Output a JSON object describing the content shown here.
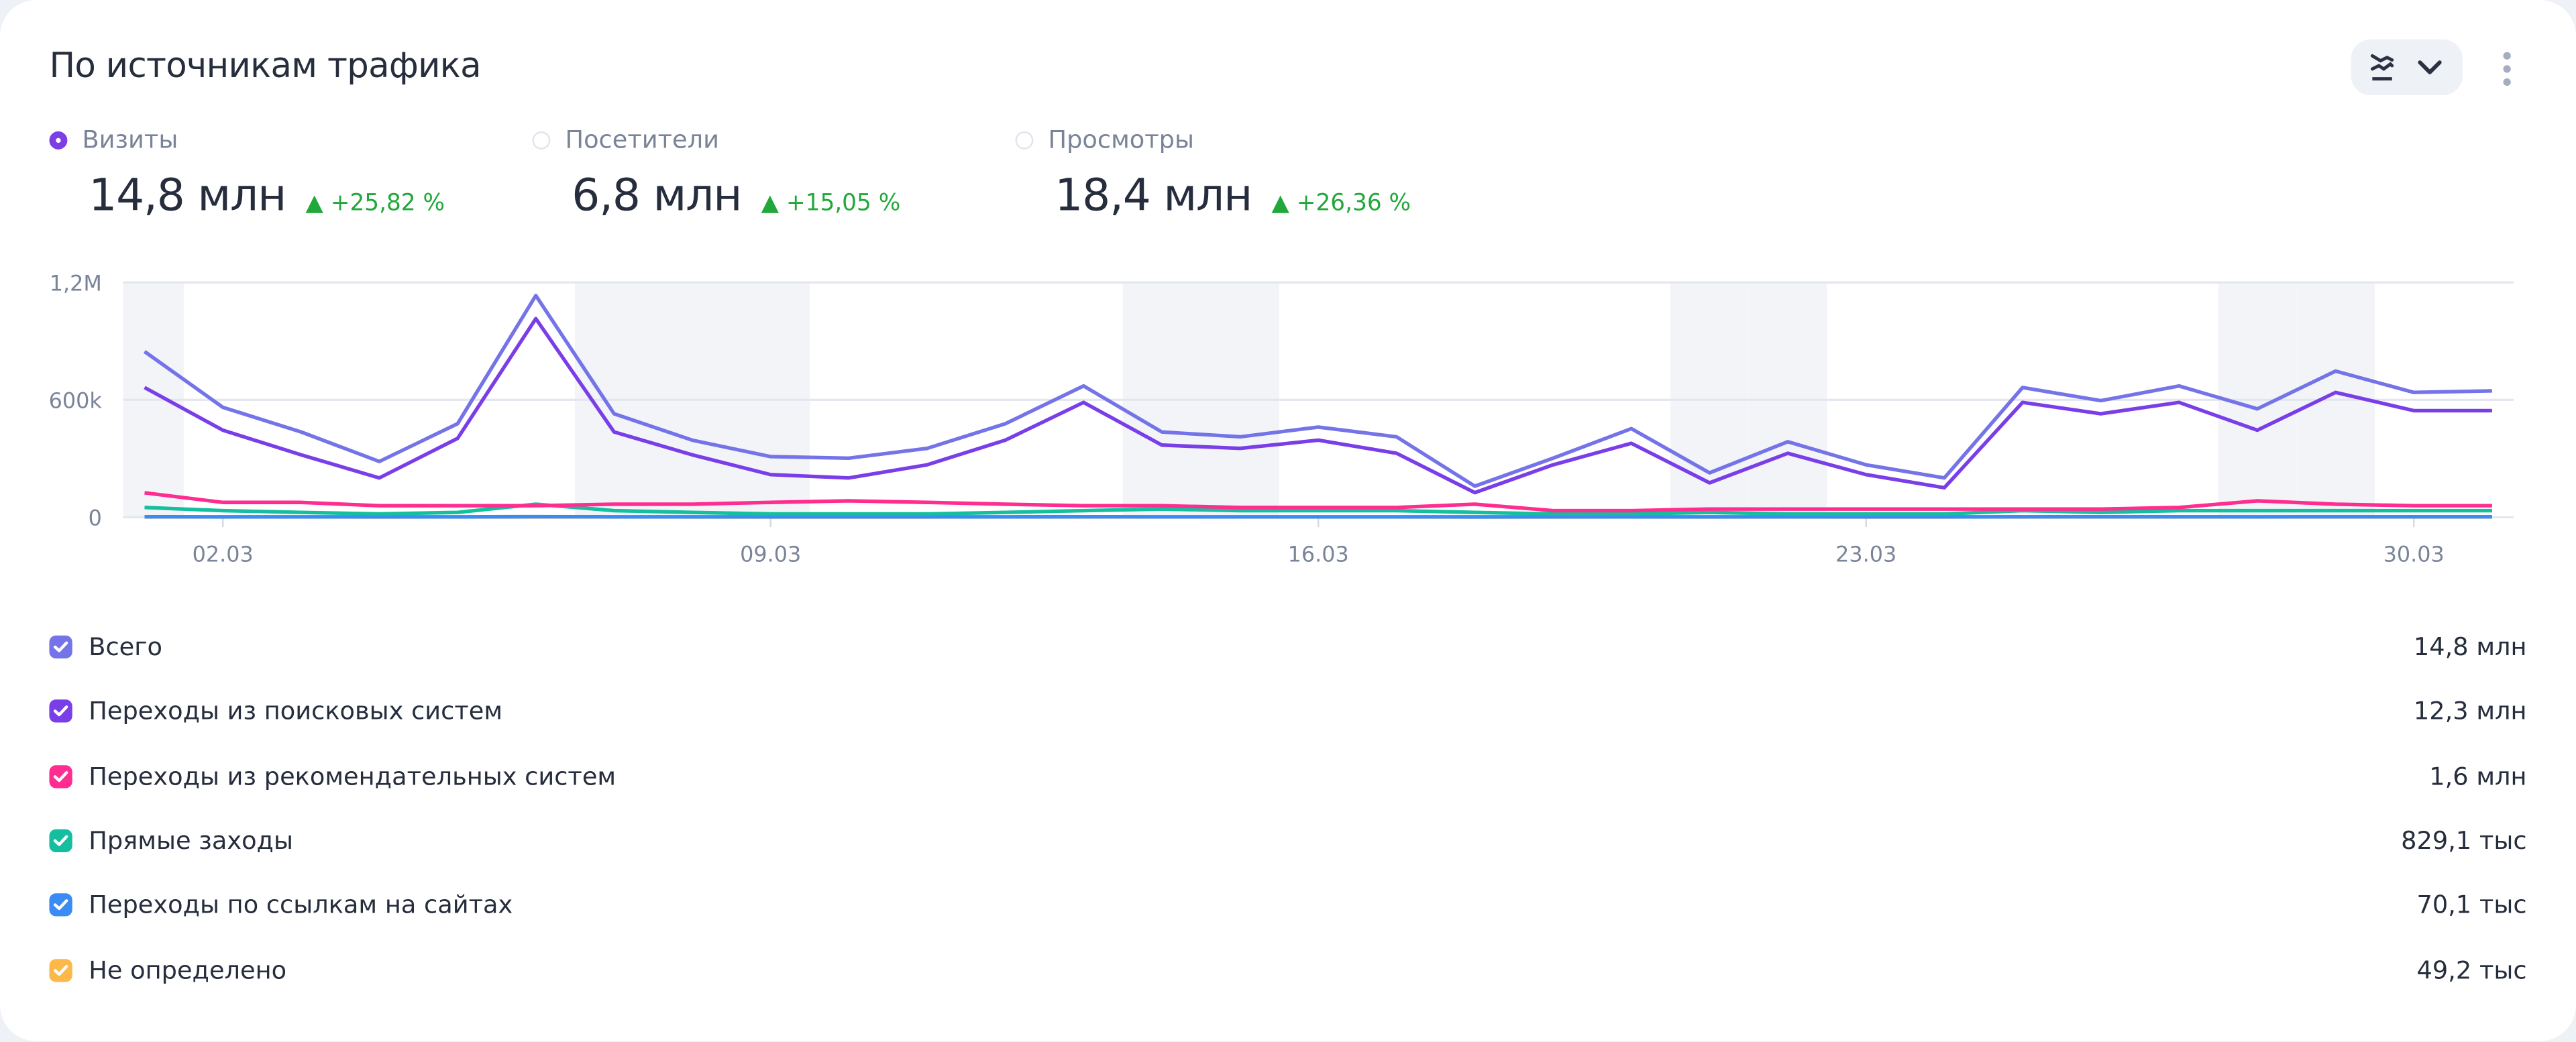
{
  "header": {
    "title": "По источникам трафика",
    "view_icon": "chart-lines-icon",
    "more_icon": "more-vertical-icon"
  },
  "metrics": [
    {
      "label": "Визиты",
      "value": "14,8 млн",
      "change": "▲ +25,82 %",
      "selected": true
    },
    {
      "label": "Посетители",
      "value": "6,8 млн",
      "change": "▲ +15,05 %",
      "selected": false
    },
    {
      "label": "Просмотры",
      "value": "18,4 млн",
      "change": "▲ +26,36 %",
      "selected": false
    }
  ],
  "legend": [
    {
      "label": "Всего",
      "value": "14,8 млн",
      "color": "#7474e8"
    },
    {
      "label": "Переходы из поисковых систем",
      "value": "12,3 млн",
      "color": "#7a3ee8"
    },
    {
      "label": "Переходы из рекомендательных систем",
      "value": "1,6 млн",
      "color": "#ff2d8f"
    },
    {
      "label": "Прямые заходы",
      "value": "829,1 тыс",
      "color": "#13bf9e"
    },
    {
      "label": "Переходы по ссылкам на сайтах",
      "value": "70,1 тыс",
      "color": "#3b8bf5"
    },
    {
      "label": "Не определено",
      "value": "49,2 тыс",
      "color": "#fdb84a"
    }
  ],
  "chart_data": {
    "type": "line",
    "x": [
      "01.03",
      "02.03",
      "03.03",
      "04.03",
      "05.03",
      "06.03",
      "07.03",
      "08.03",
      "09.03",
      "10.03",
      "11.03",
      "12.03",
      "13.03",
      "14.03",
      "15.03",
      "16.03",
      "17.03",
      "18.03",
      "19.03",
      "20.03",
      "21.03",
      "22.03",
      "23.03",
      "24.03",
      "25.03",
      "26.03",
      "27.03",
      "28.03",
      "29.03",
      "30.03",
      "31.03"
    ],
    "x_tick_labels": [
      "02.03",
      "09.03",
      "16.03",
      "23.03",
      "30.03"
    ],
    "y_tick_labels": [
      "0",
      "600k",
      "1,2M"
    ],
    "y_ticks": [
      0,
      600000,
      1200000
    ],
    "ylim": [
      0,
      1200000
    ],
    "shaded_days": [
      "01.03",
      "07.03",
      "08.03",
      "09.03",
      "14.03",
      "15.03",
      "21.03",
      "22.03",
      "28.03",
      "29.03"
    ],
    "series": [
      {
        "name": "Всего",
        "color": "#7474e8",
        "values": [
          847000,
          562000,
          436000,
          285000,
          478000,
          1133000,
          529000,
          394000,
          310000,
          302000,
          352000,
          478000,
          671000,
          436000,
          411000,
          461000,
          411000,
          159000,
          302000,
          453000,
          227000,
          386000,
          268000,
          201000,
          663000,
          596000,
          671000,
          554000,
          747000,
          638000,
          646000
        ]
      },
      {
        "name": "Переходы из поисковых систем",
        "color": "#7a3ee8",
        "values": [
          663000,
          445000,
          319000,
          201000,
          403000,
          1015000,
          436000,
          319000,
          218000,
          201000,
          268000,
          394000,
          587000,
          369000,
          352000,
          394000,
          327000,
          126000,
          268000,
          378000,
          176000,
          327000,
          218000,
          151000,
          587000,
          529000,
          587000,
          445000,
          638000,
          545000,
          545000
        ]
      },
      {
        "name": "Переходы из рекомендательных систем",
        "color": "#ff2d8f",
        "values": [
          125000,
          76000,
          76000,
          59000,
          59000,
          59000,
          67000,
          67000,
          76000,
          84000,
          76000,
          67000,
          59000,
          59000,
          50000,
          50000,
          50000,
          67000,
          34000,
          34000,
          42000,
          42000,
          42000,
          42000,
          42000,
          42000,
          50000,
          84000,
          67000,
          59000,
          59000
        ]
      },
      {
        "name": "Прямые заходы",
        "color": "#13bf9e",
        "values": [
          50000,
          34000,
          25000,
          17000,
          25000,
          67000,
          34000,
          25000,
          17000,
          17000,
          17000,
          25000,
          34000,
          42000,
          34000,
          34000,
          34000,
          25000,
          17000,
          17000,
          25000,
          17000,
          17000,
          17000,
          34000,
          25000,
          34000,
          34000,
          34000,
          34000,
          34000
        ]
      },
      {
        "name": "Переходы по ссылкам на сайтах",
        "color": "#3b8bf5",
        "values": [
          2500,
          2300,
          2200,
          2000,
          2300,
          3000,
          2200,
          2100,
          2000,
          2000,
          2100,
          2300,
          2500,
          2200,
          2200,
          2300,
          2200,
          1900,
          2100,
          2300,
          2000,
          2200,
          2100,
          2000,
          2500,
          2400,
          2500,
          2300,
          2600,
          2400,
          2400
        ]
      },
      {
        "name": "Не определено",
        "color": "#fdb84a",
        "values": [
          1700,
          1600,
          1600,
          1500,
          1600,
          1900,
          1600,
          1500,
          1500,
          1500,
          1500,
          1600,
          1700,
          1600,
          1600,
          1600,
          1600,
          1400,
          1500,
          1600,
          1500,
          1600,
          1500,
          1500,
          1700,
          1600,
          1700,
          1600,
          1700,
          1600,
          1600
        ]
      }
    ]
  }
}
